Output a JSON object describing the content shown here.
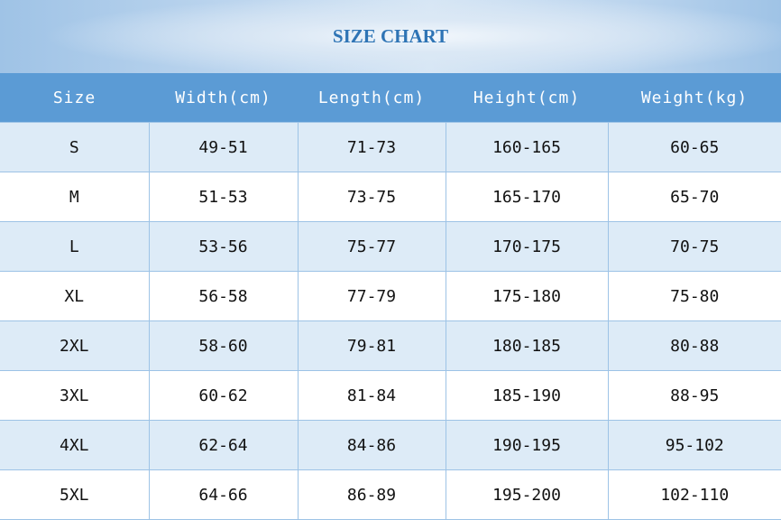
{
  "title": "SIZE CHART",
  "headers": [
    "Size",
    "Width(cm)",
    "Length(cm)",
    "Height(cm)",
    "Weight(kg)"
  ],
  "rows": [
    [
      "S",
      "49-51",
      "71-73",
      "160-165",
      "60-65"
    ],
    [
      "M",
      "51-53",
      "73-75",
      "165-170",
      "65-70"
    ],
    [
      "L",
      "53-56",
      "75-77",
      "170-175",
      "70-75"
    ],
    [
      "XL",
      "56-58",
      "77-79",
      "175-180",
      "75-80"
    ],
    [
      "2XL",
      "58-60",
      "79-81",
      "180-185",
      "80-88"
    ],
    [
      "3XL",
      "60-62",
      "81-84",
      "185-190",
      "88-95"
    ],
    [
      "4XL",
      "62-64",
      "84-86",
      "190-195",
      "95-102"
    ],
    [
      "5XL",
      "64-66",
      "86-89",
      "195-200",
      "102-110"
    ]
  ],
  "colors": {
    "header": "#5b9bd5",
    "stripe": "#ddebf7",
    "title": "#2e74b5",
    "border": "#9dc3e6"
  }
}
